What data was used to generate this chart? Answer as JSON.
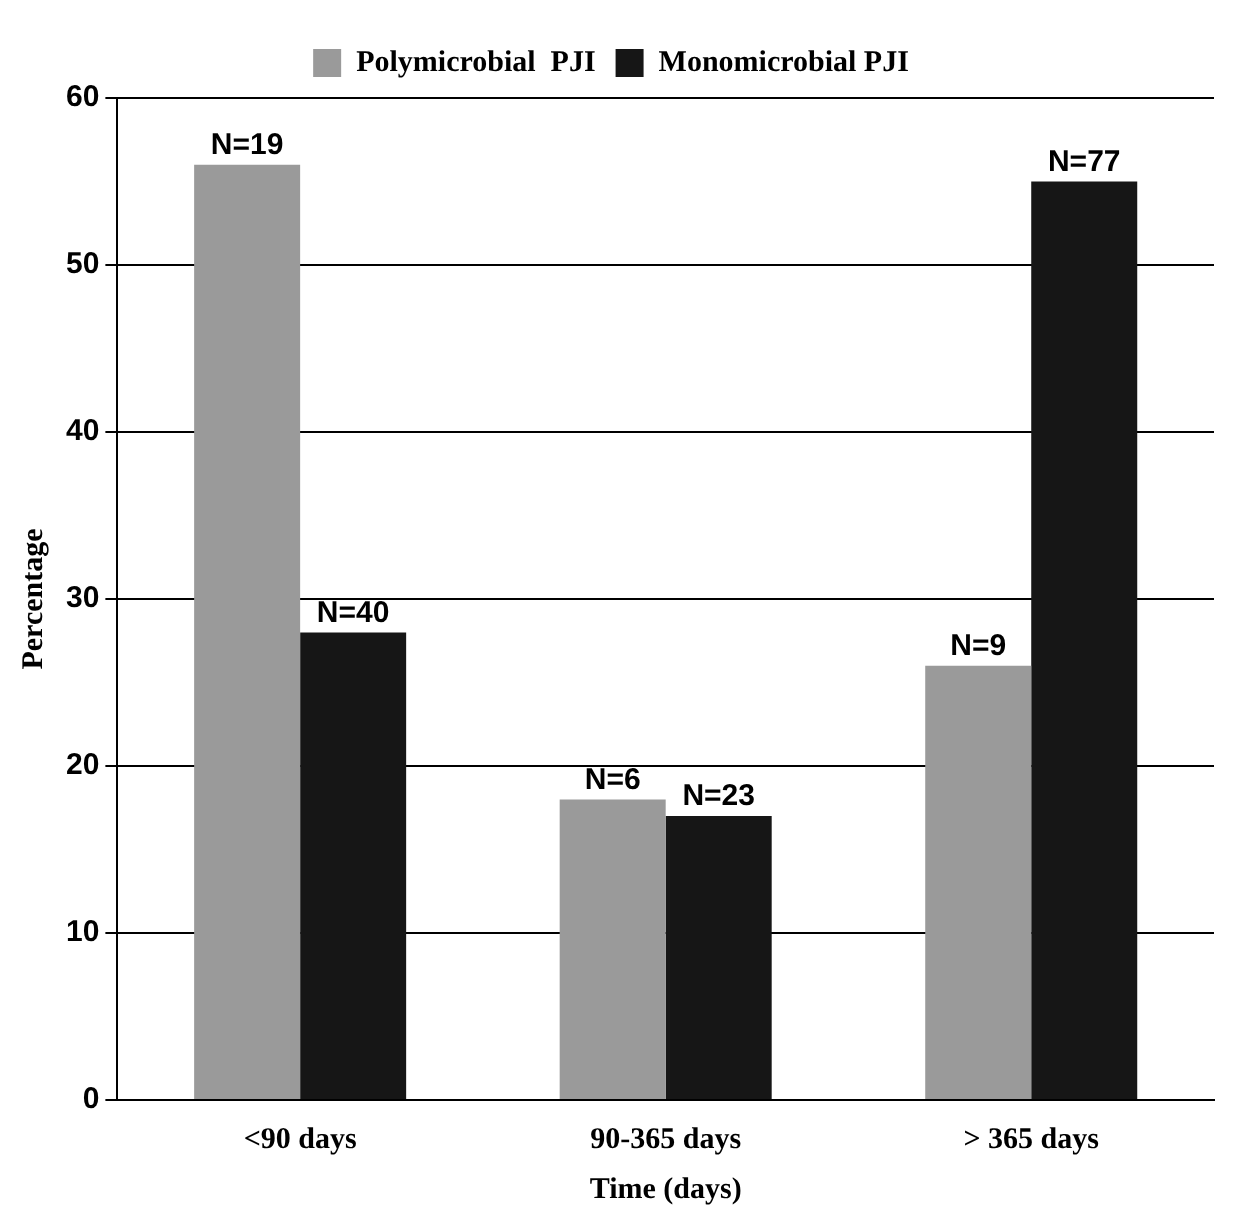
{
  "chart_data": {
    "type": "bar",
    "xlabel": "Time (days)",
    "ylabel": "Percentage",
    "categories": [
      "<90 days",
      "90-365 days",
      "> 365 days"
    ],
    "series": [
      {
        "name": "Polymicrobial  PJI",
        "color": "#9a9a9a",
        "values": [
          56,
          18,
          26
        ]
      },
      {
        "name": "Monomicrobial PJI",
        "color": "#161616",
        "values": [
          28,
          17,
          55
        ]
      }
    ],
    "annotations": [
      {
        "text": "N=19",
        "x": "<90 days",
        "y": 56
      },
      {
        "text": "N=40",
        "x": "<90 days",
        "y": 28
      },
      {
        "text": "N=6",
        "x": "90-365 days",
        "y": 18
      },
      {
        "text": "N=23",
        "x": "90-365 days",
        "y": 17
      },
      {
        "text": "N=9",
        "x": "> 365 days",
        "y": 26
      },
      {
        "text": "N=77",
        "x": "> 365 days",
        "y": 55
      }
    ],
    "ylim": [
      0,
      60
    ],
    "yticks": [
      0,
      10,
      20,
      30,
      40,
      50,
      60
    ],
    "grid": "y",
    "legend": "top"
  }
}
